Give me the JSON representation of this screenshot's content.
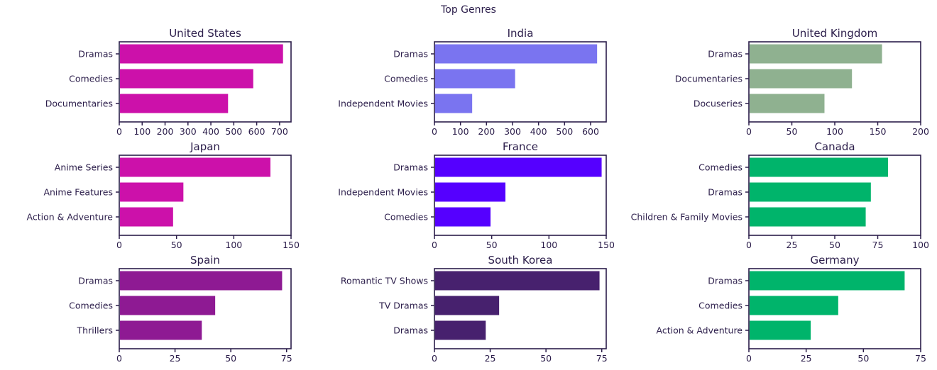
{
  "figure_title": "Top Genres",
  "chart_data": [
    {
      "type": "bar",
      "orientation": "horizontal",
      "title": "United States",
      "categories": [
        "Dramas",
        "Comedies",
        "Documentaries"
      ],
      "values": [
        715,
        585,
        475
      ],
      "xlim": [
        0,
        750
      ],
      "xticks": [
        0,
        100,
        200,
        300,
        400,
        500,
        600,
        700
      ],
      "color": "#cc11aa"
    },
    {
      "type": "bar",
      "orientation": "horizontal",
      "title": "India",
      "categories": [
        "Dramas",
        "Comedies",
        "Independent Movies"
      ],
      "values": [
        625,
        310,
        145
      ],
      "xlim": [
        0,
        660
      ],
      "xticks": [
        0,
        100,
        200,
        300,
        400,
        500,
        600
      ],
      "color": "#7a74f0"
    },
    {
      "type": "bar",
      "orientation": "horizontal",
      "title": "United Kingdom",
      "categories": [
        "Dramas",
        "Documentaries",
        "Docuseries"
      ],
      "values": [
        155,
        120,
        88
      ],
      "xlim": [
        0,
        200
      ],
      "xticks": [
        0,
        50,
        100,
        150,
        200
      ],
      "color": "#8fb190"
    },
    {
      "type": "bar",
      "orientation": "horizontal",
      "title": "Japan",
      "categories": [
        "Anime Series",
        "Anime Features",
        "Action & Adventure"
      ],
      "values": [
        132,
        56,
        47
      ],
      "xlim": [
        0,
        150
      ],
      "xticks": [
        0,
        50,
        100,
        150
      ],
      "color": "#cc11aa"
    },
    {
      "type": "bar",
      "orientation": "horizontal",
      "title": "France",
      "categories": [
        "Dramas",
        "Independent Movies",
        "Comedies"
      ],
      "values": [
        146,
        62,
        49
      ],
      "xlim": [
        0,
        150
      ],
      "xticks": [
        0,
        50,
        100,
        150
      ],
      "color": "#5500ff"
    },
    {
      "type": "bar",
      "orientation": "horizontal",
      "title": "Canada",
      "categories": [
        "Comedies",
        "Dramas",
        "Children & Family Movies"
      ],
      "values": [
        81,
        71,
        68
      ],
      "xlim": [
        0,
        100
      ],
      "xticks": [
        0,
        25,
        50,
        75,
        100
      ],
      "color": "#00b46b"
    },
    {
      "type": "bar",
      "orientation": "horizontal",
      "title": "Spain",
      "categories": [
        "Dramas",
        "Comedies",
        "Thrillers"
      ],
      "values": [
        73,
        43,
        37
      ],
      "xlim": [
        0,
        77
      ],
      "xticks": [
        0,
        25,
        50,
        75
      ],
      "color": "#8e1a93"
    },
    {
      "type": "bar",
      "orientation": "horizontal",
      "title": "South Korea",
      "categories": [
        "Romantic TV Shows",
        "TV Dramas",
        "Dramas"
      ],
      "values": [
        74,
        29,
        23
      ],
      "xlim": [
        0,
        77
      ],
      "xticks": [
        0,
        25,
        50,
        75
      ],
      "color": "#47216e"
    },
    {
      "type": "bar",
      "orientation": "horizontal",
      "title": "Germany",
      "categories": [
        "Dramas",
        "Comedies",
        "Action & Adventure"
      ],
      "values": [
        68,
        39,
        27
      ],
      "xlim": [
        0,
        75
      ],
      "xticks": [
        0,
        25,
        50,
        75
      ],
      "color": "#00b46b"
    }
  ]
}
